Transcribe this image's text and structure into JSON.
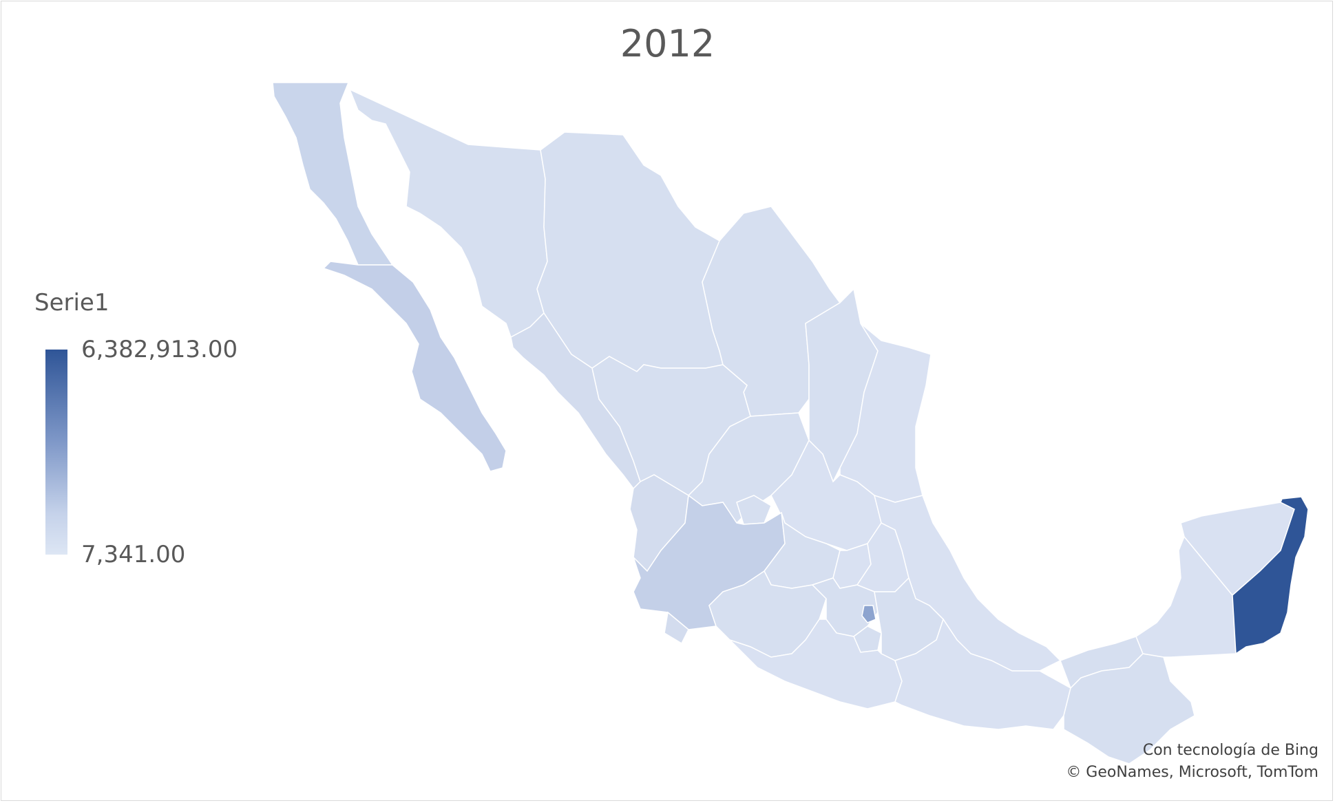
{
  "title": "2012",
  "legend": {
    "series_name": "Serie1",
    "max_label": "6,382,913.00",
    "min_label": "7,341.00",
    "color_max": "#2f5597",
    "color_min": "#dde6f4"
  },
  "attribution": {
    "line1": "Con tecnología de Bing",
    "line2": "© GeoNames, Microsoft, TomTom"
  },
  "colors": {
    "region_light": "#d9e1f2",
    "region_mid": "#c7d3ea",
    "region_strong": "#b9c8e4",
    "region_highlight": "#2f5597",
    "border": "#ffffff"
  }
}
